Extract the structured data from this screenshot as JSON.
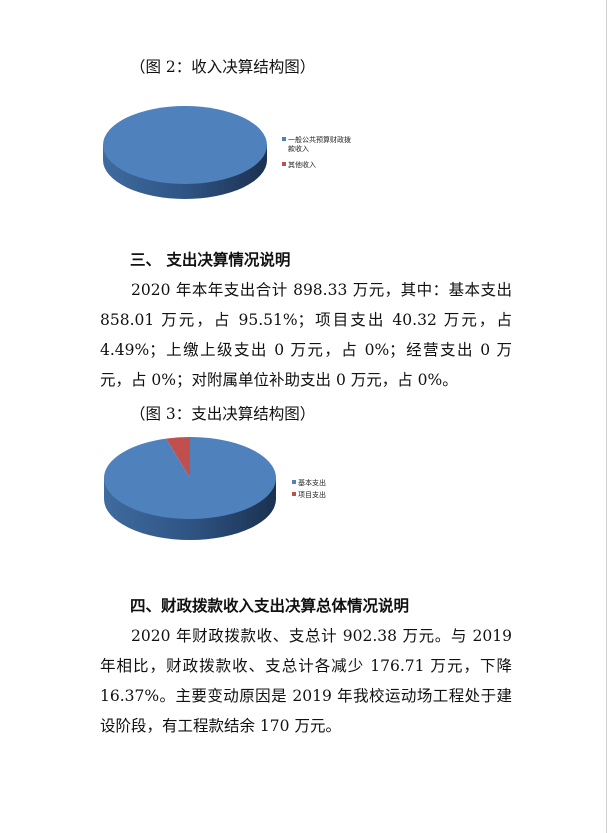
{
  "caption2": "（图 2：收入决算结构图）",
  "section3": {
    "heading": "三、 支出决算情况说明",
    "paragraph": "2020 年本年支出合计 898.33 万元，其中：基本支出858.01 万元，占 95.51%；项目支出 40.32 万元，占 4.49%；上缴上级支出 0 万元，占 0%；经营支出 0 万元，占 0%；对附属单位补助支出 0 万元，占 0%。"
  },
  "caption3": "（图 3：支出决算结构图）",
  "section4": {
    "heading": "四、财政拨款收入支出决算总体情况说明",
    "paragraph": "2020 年财政拨款收、支总计 902.38 万元。与 2019 年相比，财政拨款收、支总计各减少 176.71 万元，下降 16.37%。主要变动原因是 2019 年我校运动场工程处于建设阶段，有工程款结余 170 万元。"
  },
  "chart_data": [
    {
      "type": "pie",
      "title": "",
      "categories": [
        "一般公共预算财政拨款收入",
        "其他收入"
      ],
      "values": [
        100,
        0
      ],
      "colors": [
        "#4f81bd",
        "#c0504d"
      ],
      "legend": "right"
    },
    {
      "type": "pie",
      "title": "",
      "categories": [
        "基本支出",
        "项目支出"
      ],
      "values": [
        95.51,
        4.49
      ],
      "colors": [
        "#4f81bd",
        "#c0504d"
      ],
      "legend": "right"
    }
  ]
}
